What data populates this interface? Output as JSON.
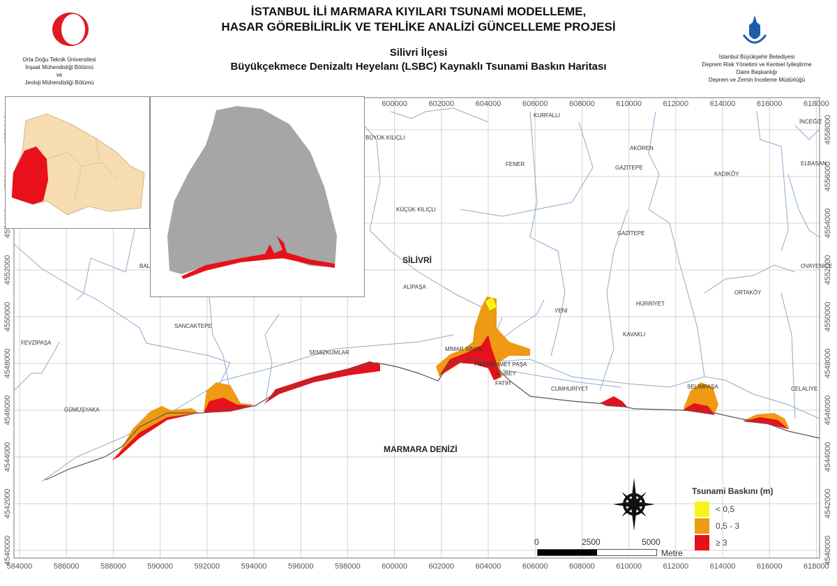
{
  "header": {
    "project_title_line1": "İSTANBUL İLİ MARMARA KIYILARI TSUNAMİ MODELLEME,",
    "project_title_line2": "HASAR GÖREBİLİRLİK VE TEHLİKE ANALİZİ GÜNCELLEME PROJESİ",
    "map_title_line1": "Silivri İlçesi",
    "map_title_line2": "Büyükçekmece Denizaltı Heyelanı (LSBC) Kaynaklı Tsunami Baskın Haritası",
    "left_org": [
      "Orta Doğu Teknik Üniversitesi",
      "İnşaat Mühendisliği Bölümü",
      "ve",
      "Jeoloji Mühendisliği Bölümü"
    ],
    "right_org": [
      "İstanbul Büyükşehir Belediyesi",
      "Deprem Risk Yönetimi ve Kentsel İyileştirme",
      "Daire Başkanlığı",
      "Deprem ve Zemin İnceleme Müdürlüğü"
    ]
  },
  "map": {
    "x_ticks": [
      "584000",
      "586000",
      "588000",
      "590000",
      "592000",
      "594000",
      "596000",
      "598000",
      "600000",
      "602000",
      "604000",
      "606000",
      "608000",
      "610000",
      "612000",
      "614000",
      "616000",
      "618000"
    ],
    "y_ticks": [
      "4558000",
      "4556000",
      "4554000",
      "4552000",
      "4550000",
      "4548000",
      "4546000",
      "4544000",
      "4542000",
      "4540000"
    ],
    "district_label": "SİLİVRİ",
    "sea_label": "MARMARA DENİZİ",
    "places": [
      "KURFALLI",
      "BÜYÜK KILIÇLI",
      "FENER",
      "AKÖREN",
      "GAZİTEPE",
      "KADIKÖY",
      "İNCEĞİZ",
      "ELBASAN",
      "KÜÇÜK KILIÇLI",
      "GAZİTEPE",
      "OVAYENİCE",
      "ALİPAŞA",
      "YENİ",
      "HÜRRİYET",
      "ORTAKÖY",
      "KAVAKLI",
      "SANCAKTEPE",
      "FEVZİPAŞA",
      "SEMİZKUMLAR",
      "MİMAR SİNAN",
      "PİRİ MEHMET PAŞA",
      "ALİBEY",
      "FATİH",
      "CUMHURİYET",
      "SELİMPAŞA",
      "CELALİYE",
      "GÜMÜŞYAKA",
      "BAL"
    ]
  },
  "legend": {
    "title": "Tsunami Baskını (m)",
    "classes": [
      {
        "label": "< 0,5",
        "color": "#f5f51c"
      },
      {
        "label": "0,5 - 3",
        "color": "#ee9a12"
      },
      {
        "label": "≥  3",
        "color": "#e8101a"
      }
    ]
  },
  "scale_bar": {
    "labels": [
      "0",
      "2500",
      "5000"
    ],
    "unit": "Metre"
  },
  "colors": {
    "inset_province": "#f6dcb0",
    "inset_selected": "#e8101a",
    "inset_district": "#a6a6a6",
    "boundary": "#7f9fc4"
  }
}
